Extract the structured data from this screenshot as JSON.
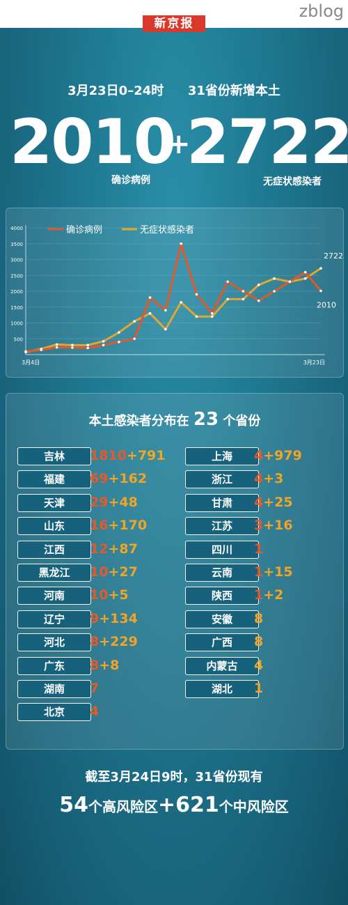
{
  "watermark": "zblog",
  "logo": "新京报",
  "headline": {
    "date": "3月23日0–24时",
    "scope": "31省份新增本土"
  },
  "summary": {
    "confirmed": "2010",
    "plus": "+",
    "asymptomatic": "2722",
    "confirmed_label": "确诊病例",
    "asymptomatic_label": "无症状感染者"
  },
  "chart_data": {
    "type": "line",
    "x_start_label": "3月4日",
    "x_end_label": "3月23日",
    "ylim": [
      0,
      4000
    ],
    "yticks": [
      "500",
      "1000",
      "1500",
      "2000",
      "2500",
      "3000",
      "3500",
      "4000"
    ],
    "series": [
      {
        "name": "确诊病例",
        "color": "#e0592a",
        "values": [
          100,
          150,
          230,
          220,
          210,
          300,
          400,
          500,
          1800,
          1400,
          3500,
          1900,
          1300,
          2300,
          2000,
          1700,
          2000,
          2300,
          2600,
          2010
        ]
      },
      {
        "name": "无症状感染者",
        "color": "#e3a532",
        "values": [
          80,
          180,
          320,
          300,
          300,
          420,
          700,
          1050,
          1300,
          800,
          1650,
          1200,
          1200,
          1750,
          1750,
          2200,
          2400,
          2300,
          2400,
          2722
        ]
      }
    ],
    "end_labels": {
      "asymptomatic": "2722",
      "confirmed": "2010"
    }
  },
  "distribution": {
    "title_pre": "本土感染者分布在",
    "title_num": "23",
    "title_post": "个省份",
    "left": [
      {
        "name": "吉林",
        "c": "1810",
        "a": "791"
      },
      {
        "name": "福建",
        "c": "69",
        "a": "162"
      },
      {
        "name": "天津",
        "c": "29",
        "a": "48"
      },
      {
        "name": "山东",
        "c": "16",
        "a": "170"
      },
      {
        "name": "江西",
        "c": "12",
        "a": "87"
      },
      {
        "name": "黑龙江",
        "c": "10",
        "a": "27"
      },
      {
        "name": "河南",
        "c": "10",
        "a": "5"
      },
      {
        "name": "辽宁",
        "c": "9",
        "a": "134"
      },
      {
        "name": "河北",
        "c": "8",
        "a": "229"
      },
      {
        "name": "广东",
        "c": "8",
        "a": "8"
      },
      {
        "name": "湖南",
        "c": "7",
        "a": ""
      },
      {
        "name": "北京",
        "c": "4",
        "a": ""
      }
    ],
    "right": [
      {
        "name": "上海",
        "c": "4",
        "a": "979"
      },
      {
        "name": "浙江",
        "c": "4",
        "a": "3"
      },
      {
        "name": "甘肃",
        "c": "4",
        "a": "25"
      },
      {
        "name": "江苏",
        "c": "3",
        "a": "16"
      },
      {
        "name": "四川",
        "c": "1",
        "a": ""
      },
      {
        "name": "云南",
        "c": "1",
        "a": "15"
      },
      {
        "name": "陕西",
        "c": "1",
        "a": "2"
      },
      {
        "name": "安徽",
        "c": "",
        "a": "8"
      },
      {
        "name": "广西",
        "c": "",
        "a": "8"
      },
      {
        "name": "内蒙古",
        "c": "",
        "a": "4"
      },
      {
        "name": "湖北",
        "c": "",
        "a": "1"
      }
    ]
  },
  "footer": {
    "line1": "截至3月24日9时，31省份现有",
    "high_num": "54",
    "high_label": "个高风险区",
    "plus": "+",
    "mid_num": "621",
    "mid_label": "个中风险区"
  }
}
